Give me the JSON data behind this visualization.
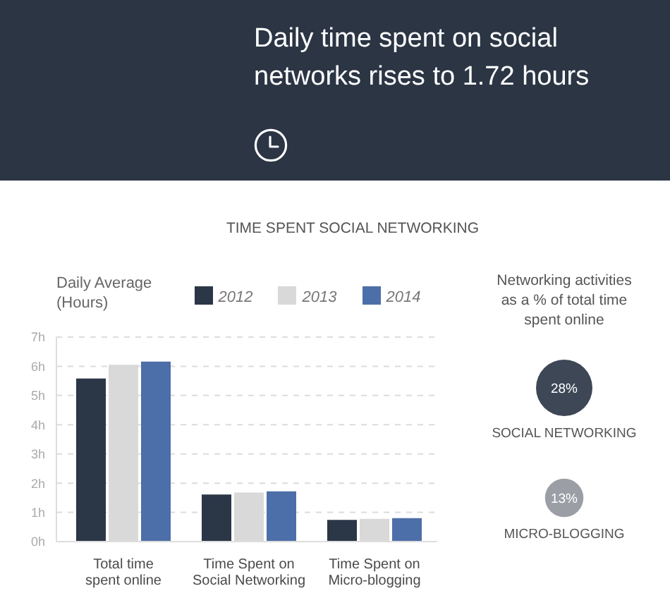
{
  "chart_data": [
    {
      "type": "bar",
      "title": "Daily time spent on social networks rises to 1.72 hours",
      "subtitle": "TIME SPENT SOCIAL NETWORKING",
      "ylabel": "Daily Average (Hours)",
      "categories": [
        "Total time spent online",
        "Time Spent on Social Networking",
        "Time Spent on Micro-blogging"
      ],
      "series": [
        {
          "name": "2012",
          "color": "#2b3647",
          "values": [
            5.58,
            1.61,
            0.74
          ]
        },
        {
          "name": "2013",
          "color": "#d9d9d9",
          "values": [
            6.05,
            1.68,
            0.78
          ]
        },
        {
          "name": "2014",
          "color": "#4d6fa9",
          "values": [
            6.16,
            1.72,
            0.8
          ]
        }
      ],
      "ylim": [
        0,
        7
      ],
      "yticks": [
        {
          "value": 0,
          "label": "0h"
        },
        {
          "value": 1,
          "label": "1h"
        },
        {
          "value": 2,
          "label": "2h"
        },
        {
          "value": 3,
          "label": "3h"
        },
        {
          "value": 4,
          "label": "4h"
        },
        {
          "value": 5,
          "label": "5h"
        },
        {
          "value": 6,
          "label": "6h"
        },
        {
          "value": 7,
          "label": "7h"
        }
      ],
      "grid": "y",
      "legend": "top"
    },
    {
      "type": "other",
      "title": "Networking activities as a % of total time spent online",
      "categories": [
        "SOCIAL NETWORKING",
        "MICRO-BLOGGING"
      ],
      "values": [
        28,
        13
      ],
      "colors": [
        "#3d4756",
        "#9b9fa5"
      ],
      "value_labels": [
        "28%",
        "13%"
      ]
    }
  ]
}
